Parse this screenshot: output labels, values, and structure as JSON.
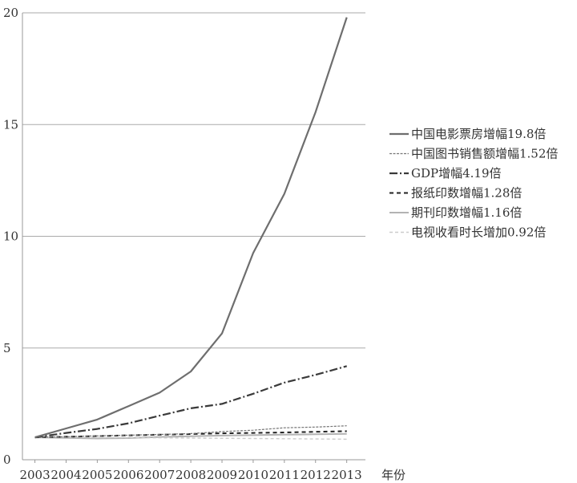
{
  "chart_data": {
    "type": "line",
    "title": "",
    "xlabel": "年份",
    "ylabel": "",
    "x": [
      2003,
      2004,
      2005,
      2006,
      2007,
      2008,
      2009,
      2010,
      2011,
      2012,
      2013
    ],
    "xlim": [
      2002.6,
      2013.6
    ],
    "ylim": [
      0,
      20
    ],
    "yticks": [
      0,
      5,
      10,
      15,
      20
    ],
    "grid": "horizontal",
    "legend_position": "right",
    "series": [
      {
        "name": "中国电影票房增幅19.8倍",
        "color": "#6e6e6e",
        "dash": "solid",
        "width": 2.2,
        "values": [
          1,
          1.4,
          1.8,
          2.4,
          3.0,
          3.95,
          5.65,
          9.25,
          11.9,
          15.55,
          19.8
        ]
      },
      {
        "name": "中国图书销售额增幅1.52倍",
        "color": "#777777",
        "dash": "3,1.5",
        "width": 1.2,
        "values": [
          1,
          1.03,
          1.07,
          1.1,
          1.13,
          1.17,
          1.26,
          1.32,
          1.43,
          1.46,
          1.52
        ]
      },
      {
        "name": "GDP增幅4.19倍",
        "color": "#3a3a3a",
        "dash": "10,3,2,3",
        "width": 2.2,
        "values": [
          1,
          1.2,
          1.38,
          1.63,
          1.97,
          2.3,
          2.5,
          2.95,
          3.45,
          3.8,
          4.19
        ]
      },
      {
        "name": "报纸印数增幅1.28倍",
        "color": "#222222",
        "dash": "5,4",
        "width": 2,
        "values": [
          1,
          1.03,
          1.06,
          1.09,
          1.12,
          1.15,
          1.18,
          1.2,
          1.22,
          1.25,
          1.28
        ]
      },
      {
        "name": "期刊印数增幅1.16倍",
        "color": "#b3b3b3",
        "dash": "solid",
        "width": 2,
        "values": [
          1,
          0.98,
          0.95,
          0.97,
          1.02,
          1.05,
          1.08,
          1.1,
          1.12,
          1.14,
          1.16
        ]
      },
      {
        "name": "电视收看时长增加0.92倍",
        "color": "#cccccc",
        "dash": "4,3",
        "width": 1.4,
        "values": [
          1,
          1.0,
          0.99,
          0.99,
          0.98,
          0.97,
          0.96,
          0.95,
          0.94,
          0.93,
          0.92
        ]
      }
    ]
  }
}
